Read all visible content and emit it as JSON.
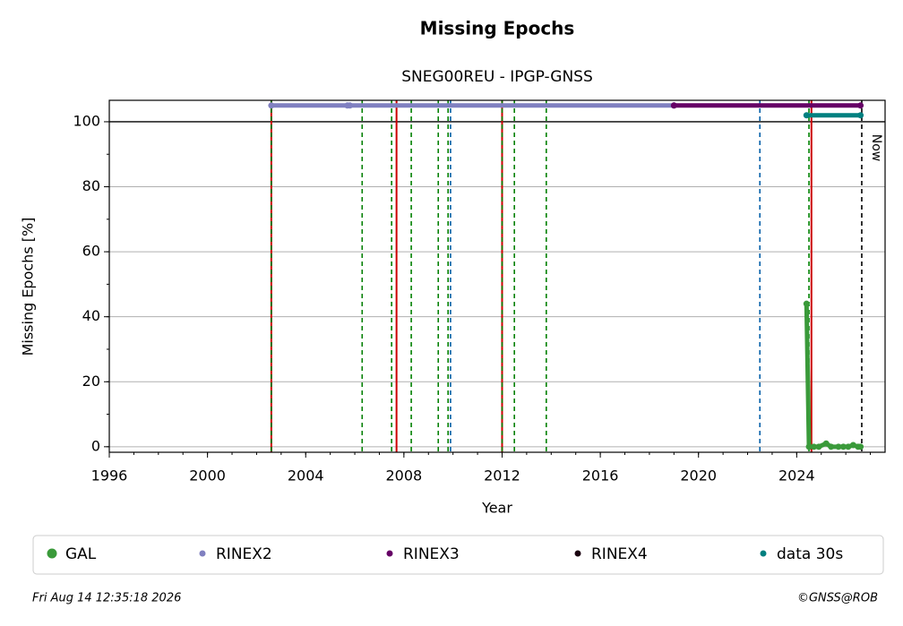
{
  "chart_data": {
    "type": "scatter",
    "title": "Missing Epochs",
    "subtitle": "SNEG00REU - IPGP-GNSS",
    "xlabel": "Year",
    "ylabel": "Missing Epochs [%]",
    "xlim": [
      1996,
      2027.6
    ],
    "ylim": [
      -1.7,
      106.6
    ],
    "xticks": [
      1996,
      2000,
      2004,
      2008,
      2012,
      2016,
      2020,
      2024
    ],
    "yticks": [
      0,
      20,
      40,
      60,
      80,
      100
    ],
    "xminor_step": 1,
    "yminor_step": 10,
    "grid": true,
    "hlines": [
      100
    ],
    "vlines": [
      {
        "x": 2002.6,
        "color": "#cc0000",
        "dashed": false
      },
      {
        "x": 2002.6,
        "color": "#008000",
        "dashed": true
      },
      {
        "x": 2006.3,
        "color": "#008000",
        "dashed": true
      },
      {
        "x": 2007.5,
        "color": "#008000",
        "dashed": true
      },
      {
        "x": 2007.7,
        "color": "#cc0000",
        "dashed": false
      },
      {
        "x": 2008.3,
        "color": "#008000",
        "dashed": true
      },
      {
        "x": 2009.4,
        "color": "#008000",
        "dashed": true
      },
      {
        "x": 2009.8,
        "color": "#008000",
        "dashed": true
      },
      {
        "x": 2009.9,
        "color": "#005fa8",
        "dashed": true
      },
      {
        "x": 2012.0,
        "color": "#cc0000",
        "dashed": false
      },
      {
        "x": 2012.0,
        "color": "#008000",
        "dashed": true
      },
      {
        "x": 2012.5,
        "color": "#008000",
        "dashed": true
      },
      {
        "x": 2013.8,
        "color": "#008000",
        "dashed": true
      },
      {
        "x": 2022.5,
        "color": "#005fa8",
        "dashed": true
      },
      {
        "x": 2024.5,
        "color": "#008000",
        "dashed": true
      },
      {
        "x": 2024.6,
        "color": "#cc0000",
        "dashed": false
      }
    ],
    "now": {
      "x": 2026.65,
      "label": "Now"
    },
    "series": [
      {
        "name": "GAL",
        "color": "#3a9a3a",
        "x": [
          2024.4,
          2024.5,
          2024.7,
          2024.9,
          2025.2,
          2025.4,
          2025.7,
          2025.9,
          2026.1,
          2026.3,
          2026.5,
          2026.6
        ],
        "values": [
          44,
          0,
          0,
          0,
          1,
          0,
          0,
          0,
          0,
          0.5,
          0,
          0
        ]
      },
      {
        "name": "RINEX2",
        "color": "#8080c0",
        "x": [
          2002.6,
          2005.7,
          2005.75,
          2005.8,
          2019.0
        ],
        "values": [
          105,
          105,
          null,
          105,
          105
        ]
      },
      {
        "name": "RINEX3",
        "color": "#660066",
        "x": [
          2019.0,
          2026.6
        ],
        "values": [
          105,
          105
        ]
      },
      {
        "name": "RINEX4",
        "color": "#1a0010",
        "x": [],
        "values": []
      },
      {
        "name": "data 30s",
        "color": "#008080",
        "x": [
          2024.4,
          2026.6
        ],
        "values": [
          102,
          102
        ]
      }
    ],
    "timestamp": "Fri Aug 14 12:35:18 2026",
    "credit": "©GNSS@ROB"
  }
}
